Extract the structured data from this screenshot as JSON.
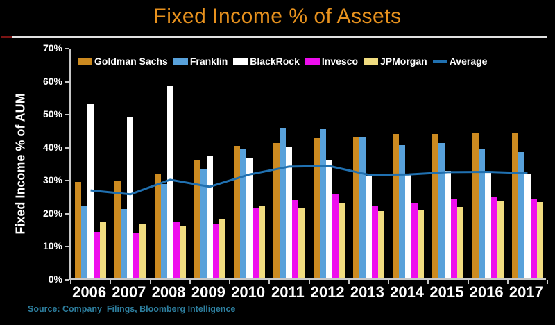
{
  "title": "Fixed Income % of Assets",
  "y_axis_label": "Fixed Income % of AUM",
  "source_text": "Source: Company  Filings, Bloomberg Intelligence",
  "colors": {
    "background": "#000000",
    "title": "#E8921E",
    "rule_red_tip": "#7A1414",
    "rule_white": "#E0E0E0",
    "axis": "#C8C8C8",
    "text": "#FFFFFF",
    "source_text": "#2D7E9E"
  },
  "chart_data": {
    "type": "bar",
    "title": "Fixed Income % of Assets",
    "ylabel": "Fixed Income % of AUM",
    "xlabel": "",
    "ylim": [
      0,
      70
    ],
    "y_tick_labels": [
      "0%",
      "10%",
      "20%",
      "30%",
      "40%",
      "50%",
      "60%",
      "70%"
    ],
    "grid": false,
    "legend_position": "top-inside",
    "categories": [
      "2006",
      "2007",
      "2008",
      "2009",
      "2010",
      "2011",
      "2012",
      "2013",
      "2014",
      "2015",
      "2016",
      "2017"
    ],
    "series": [
      {
        "name": "Goldman Sachs",
        "type": "bar",
        "color": "#CC8A20",
        "values": [
          29.3,
          29.5,
          31.7,
          36.0,
          40.2,
          41.0,
          42.5,
          42.8,
          43.8,
          43.8,
          44.0,
          44.0
        ]
      },
      {
        "name": "Franklin",
        "type": "bar",
        "color": "#58A1DA",
        "values": [
          22.0,
          21.0,
          28.5,
          33.3,
          39.3,
          45.5,
          45.3,
          42.8,
          40.4,
          41.0,
          39.2,
          38.3
        ]
      },
      {
        "name": "BlackRock",
        "type": "bar",
        "color": "#FFFFFF",
        "values": [
          52.8,
          48.8,
          58.3,
          37.1,
          36.4,
          39.8,
          36.0,
          31.2,
          31.8,
          32.6,
          32.0,
          31.8
        ]
      },
      {
        "name": "Invesco",
        "type": "bar",
        "color": "#EE0EEE",
        "values": [
          14.0,
          13.8,
          17.1,
          16.4,
          21.5,
          23.8,
          25.5,
          21.9,
          22.7,
          24.2,
          24.8,
          24.0
        ]
      },
      {
        "name": "JPMorgan",
        "type": "bar",
        "color": "#F0DC80",
        "values": [
          17.3,
          16.6,
          15.8,
          18.1,
          22.0,
          21.5,
          23.0,
          20.4,
          20.6,
          21.6,
          23.6,
          23.2
        ]
      },
      {
        "name": "Average",
        "type": "line",
        "color": "#2070B0",
        "values": [
          27.1,
          25.9,
          30.3,
          28.2,
          31.9,
          34.3,
          34.5,
          31.8,
          31.9,
          32.6,
          32.7,
          32.3
        ]
      }
    ]
  }
}
